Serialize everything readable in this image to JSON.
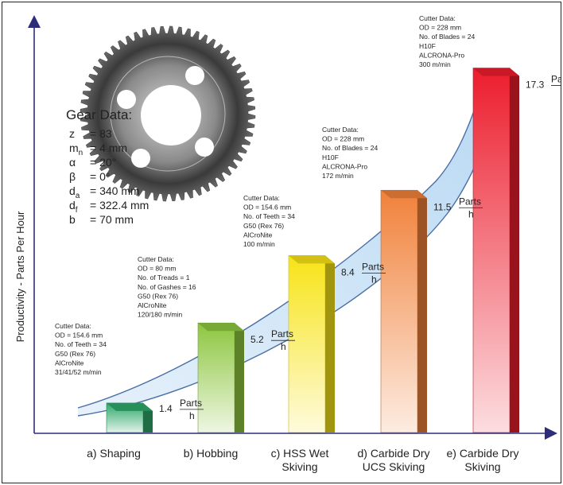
{
  "chart_data": {
    "type": "bar",
    "ylabel": "Productivity - Parts Per Hour",
    "unit": {
      "top": "Parts",
      "bottom": "h"
    },
    "categories": [
      "a) Shaping",
      "b) Hobbing",
      "c) HSS Wet Skiving",
      "d) Carbide Dry UCS Skiving",
      "e) Carbide Dry Skiving"
    ],
    "category_lines": [
      [
        "a) Shaping"
      ],
      [
        "b) Hobbing"
      ],
      [
        "c) HSS Wet",
        "Skiving"
      ],
      [
        "d) Carbide Dry",
        "UCS Skiving"
      ],
      [
        "e) Carbide Dry",
        "Skiving"
      ]
    ],
    "values": [
      1.4,
      5.2,
      8.4,
      11.5,
      17.3
    ],
    "value_labels": [
      "1.4",
      "5.2",
      "8.4",
      "11.5",
      "17.3"
    ],
    "colors": [
      "#2ea86a",
      "#8dc63f",
      "#f7e316",
      "#f0813a",
      "#ec1d2d"
    ],
    "cutter_data": [
      [
        "Cutter Data:",
        "OD = 154.6 mm",
        "No. of Teeth = 34",
        "G50 (Rex 76)",
        "AlCroNite",
        "31/41/52 m/min"
      ],
      [
        "Cutter Data:",
        "OD = 80 mm",
        "No. of Treads = 1",
        "No. of Gashes = 16",
        "G50 (Rex 76)",
        "AlCroNite",
        "120/180 m/min"
      ],
      [
        "Cutter Data:",
        "OD = 154.6 mm",
        "No. of Teeth = 34",
        "G50 (Rex 76)",
        "AlCroNite",
        "100 m/min"
      ],
      [
        "Cutter Data:",
        "OD = 228 mm",
        "No. of Blades = 24",
        "H10F",
        "ALCRONA-Pro",
        "172 m/min"
      ],
      [
        "Cutter Data:",
        "OD = 228 mm",
        "No. of Blades = 24",
        "H10F",
        "ALCRONA-Pro",
        "300 m/min"
      ]
    ]
  },
  "gear": {
    "title": "Gear Data:",
    "params": [
      {
        "sym": "z",
        "sub": "",
        "val": "= 83"
      },
      {
        "sym": "m",
        "sub": "n",
        "val": "= 4 mm"
      },
      {
        "sym": "α",
        "sub": "",
        "val": "= 20°"
      },
      {
        "sym": "β",
        "sub": "",
        "val": "= 0°"
      },
      {
        "sym": "d",
        "sub": "a",
        "val": "= 340 mm"
      },
      {
        "sym": "d",
        "sub": "f",
        "val": "= 322.4 mm"
      },
      {
        "sym": "b",
        "sub": "",
        "val": "= 70 mm"
      }
    ]
  }
}
